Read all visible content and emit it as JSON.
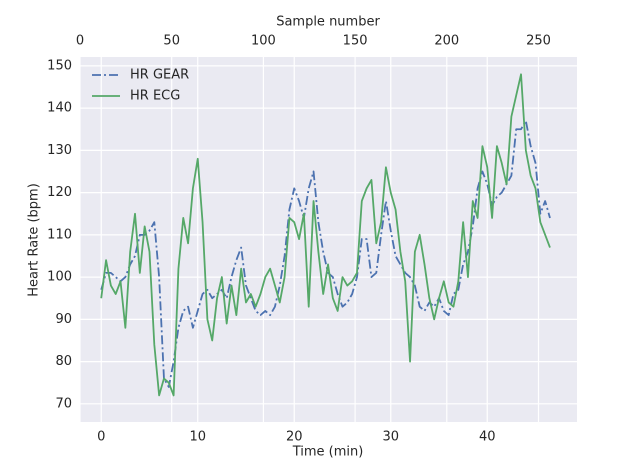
{
  "chart_data": {
    "type": "line",
    "xlabel": "Time (min)",
    "ylabel": "Heart Rate (bpm)",
    "x2label": "Sample number",
    "x": [
      0,
      0.5,
      1,
      1.5,
      2,
      2.5,
      3,
      3.5,
      4,
      4.5,
      5,
      5.5,
      6,
      6.5,
      7,
      7.5,
      8,
      8.5,
      9,
      9.5,
      10,
      10.5,
      11,
      11.5,
      12,
      12.5,
      13,
      13.5,
      14,
      14.5,
      15,
      15.5,
      16,
      16.5,
      17,
      17.5,
      18,
      18.5,
      19,
      19.5,
      20,
      20.5,
      21,
      21.5,
      22,
      22.5,
      23,
      23.5,
      24,
      24.5,
      25,
      25.5,
      26,
      26.5,
      27,
      27.5,
      28,
      28.5,
      29,
      29.5,
      30,
      30.5,
      31,
      31.5,
      32,
      32.5,
      33,
      33.5,
      34,
      34.5,
      35,
      35.5,
      36,
      36.5,
      37,
      37.5,
      38,
      38.5,
      39,
      39.5,
      40,
      40.5,
      41,
      41.5,
      42,
      42.5,
      43,
      43.5,
      44,
      44.5,
      45,
      45.5,
      46,
      46.5
    ],
    "series": [
      {
        "name": "HR GEAR",
        "color": "#4c72b0",
        "dash": "dashdot",
        "values": [
          97,
          101,
          101,
          100,
          99,
          100,
          103,
          105,
          110,
          110,
          111,
          113,
          100,
          76,
          74,
          80,
          88,
          92,
          93,
          88,
          92,
          96,
          97,
          95,
          96,
          97,
          95,
          100,
          104,
          107,
          98,
          95,
          92,
          91,
          92,
          91,
          93,
          98,
          105,
          116,
          121,
          118,
          114,
          121,
          125,
          113,
          106,
          101,
          100,
          96,
          93,
          94,
          96,
          100,
          109,
          109,
          100,
          101,
          110,
          118,
          111,
          105,
          103,
          101,
          100,
          98,
          93,
          92,
          94,
          93,
          95,
          92,
          91,
          96,
          97,
          103,
          106,
          112,
          121,
          125,
          122,
          117,
          119,
          120,
          122,
          124,
          135,
          135,
          137,
          131,
          127,
          115,
          118,
          114
        ]
      },
      {
        "name": "HR ECG",
        "color": "#55a868",
        "dash": "solid",
        "values": [
          95,
          104,
          98,
          96,
          99,
          88,
          106,
          115,
          101,
          112,
          106,
          84,
          72,
          76,
          75,
          72,
          102,
          114,
          108,
          121,
          128,
          113,
          90,
          85,
          95,
          100,
          89,
          98,
          91,
          102,
          94,
          96,
          93,
          96,
          100,
          102,
          98,
          94,
          100,
          114,
          113,
          109,
          115,
          93,
          118,
          106,
          96,
          103,
          95,
          92,
          100,
          98,
          99,
          101,
          118,
          121,
          123,
          108,
          113,
          126,
          120,
          116,
          106,
          99,
          80,
          106,
          110,
          103,
          95,
          90,
          95,
          99,
          94,
          93,
          99,
          113,
          100,
          118,
          114,
          131,
          126,
          114,
          131,
          127,
          122,
          138,
          143,
          148,
          130,
          124,
          121,
          113,
          110,
          107
        ]
      }
    ],
    "xlim": [
      -2.2,
      49.3
    ],
    "xticks": [
      0,
      10,
      20,
      30,
      40
    ],
    "x2lim": [
      0,
      271
    ],
    "x2ticks": [
      0,
      50,
      100,
      150,
      200,
      250
    ],
    "ylim": [
      65.7,
      152.1
    ],
    "yticks": [
      70,
      80,
      90,
      100,
      110,
      120,
      130,
      140,
      150
    ],
    "grid": true,
    "legend": "upper left"
  }
}
